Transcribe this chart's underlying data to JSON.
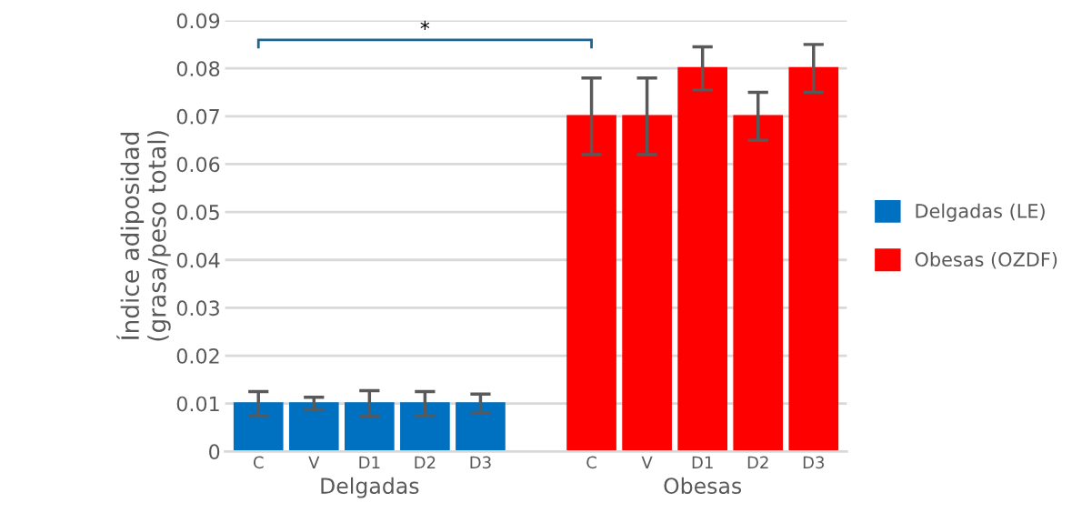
{
  "chart_data": {
    "type": "bar",
    "ylabel": "Índice adiposidad\n(grasa/peso total)",
    "categories": [
      "C",
      "V",
      "D1",
      "D2",
      "D3",
      null,
      "C",
      "V",
      "D1",
      "D2",
      "D3"
    ],
    "series": [
      {
        "name": "Delgadas (LE)",
        "color": "#0070c0",
        "values": [
          0.01,
          0.01,
          0.01,
          0.01,
          0.01,
          null,
          null,
          null,
          null,
          null,
          null
        ],
        "errors": [
          0.0025,
          0.0013,
          0.0027,
          0.0025,
          0.002,
          null,
          null,
          null,
          null,
          null,
          null
        ]
      },
      {
        "name": "Obesas (OZDF)",
        "color": "#ff0000",
        "values": [
          null,
          null,
          null,
          null,
          null,
          null,
          0.07,
          0.07,
          0.08,
          0.07,
          0.08
        ],
        "errors": [
          null,
          null,
          null,
          null,
          null,
          null,
          0.008,
          0.008,
          0.0045,
          0.005,
          0.005
        ]
      }
    ],
    "ylim": [
      0,
      0.09
    ],
    "yticks": [
      0,
      0.01,
      0.02,
      0.03,
      0.04,
      0.05,
      0.06,
      0.07,
      0.08,
      0.09
    ],
    "grid": "y",
    "legend": "right",
    "annotations": [
      "Delgadas",
      "Obesas",
      "*"
    ]
  }
}
